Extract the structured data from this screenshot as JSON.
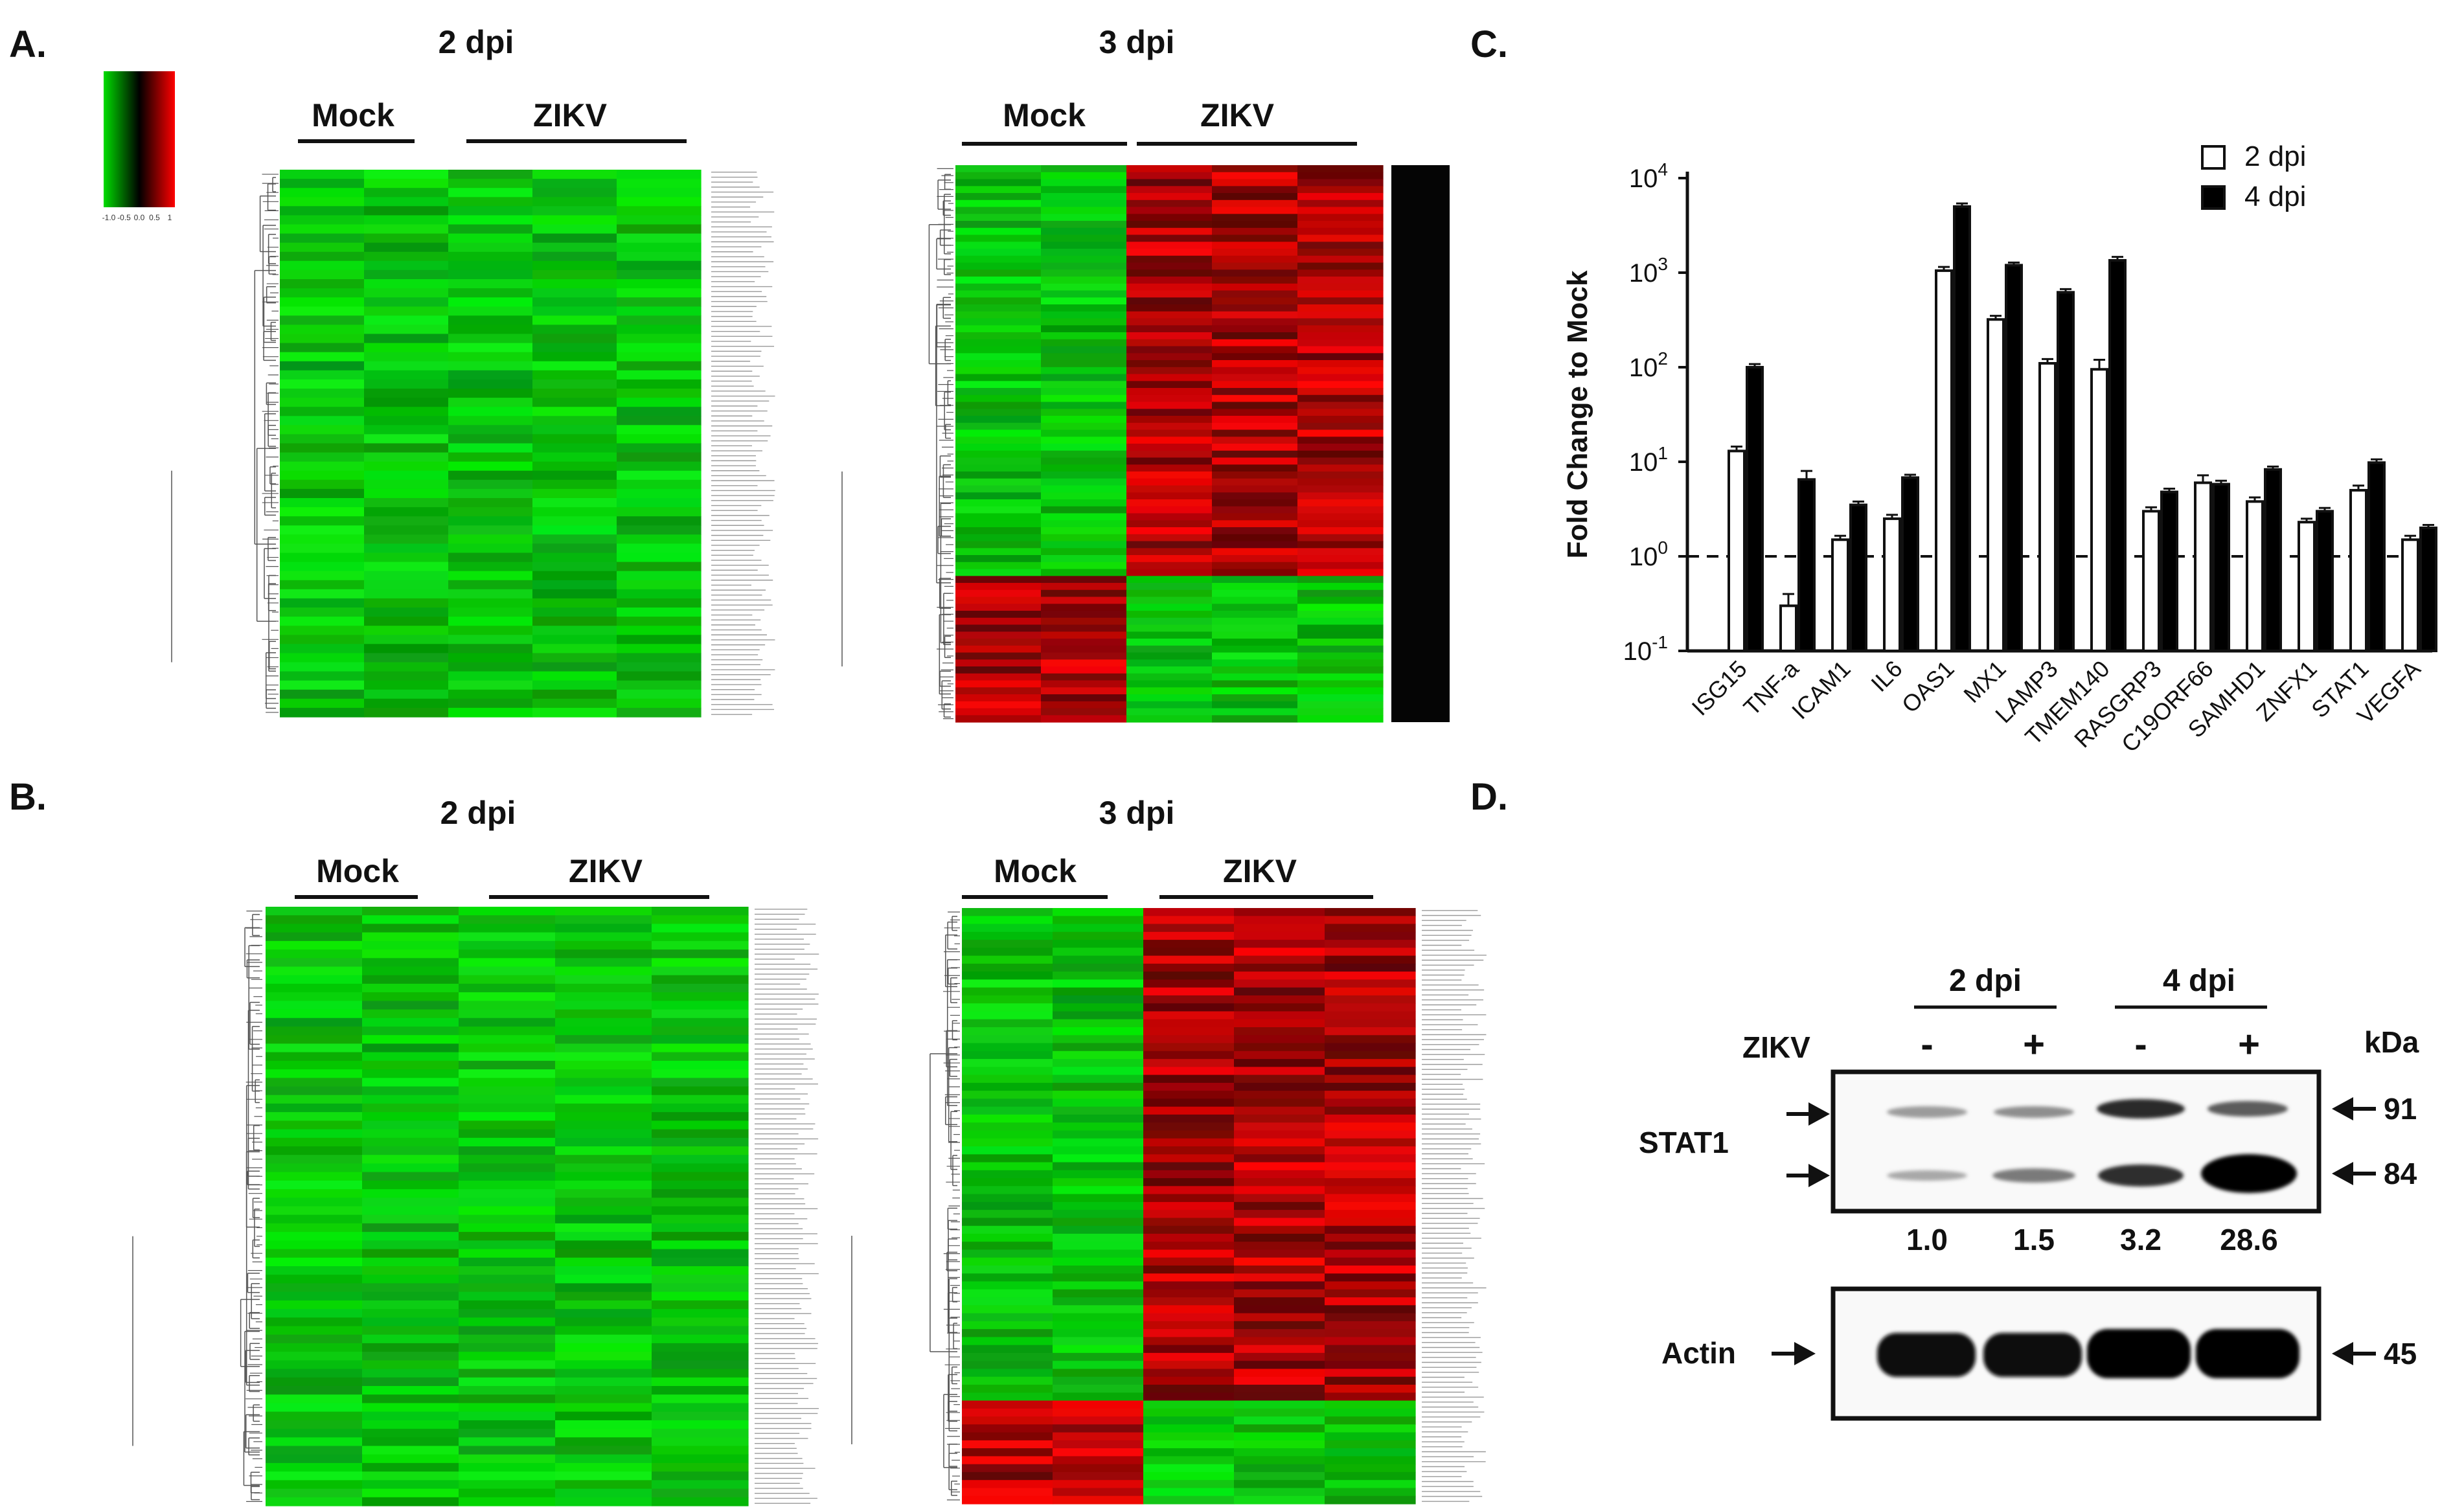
{
  "panels": {
    "A": {
      "label": "A.",
      "left": {
        "title": "2 dpi",
        "mock": "Mock",
        "zikv": "ZIKV"
      },
      "right": {
        "title": "3 dpi",
        "mock": "Mock",
        "zikv": "ZIKV"
      },
      "colorscale": {
        "ticks": [
          "-1.0",
          "-0.5",
          "0.0",
          "0.5",
          "1"
        ],
        "low_color": "#00dd00",
        "mid_color": "#000000",
        "high_color": "#ff0000"
      }
    },
    "B": {
      "label": "B.",
      "left": {
        "title": "2 dpi",
        "mock": "Mock",
        "zikv": "ZIKV"
      },
      "right": {
        "title": "3 dpi",
        "mock": "Mock",
        "zikv": "ZIKV"
      }
    },
    "C": {
      "label": "C."
    },
    "D": {
      "label": "D.",
      "groups": [
        "2 dpi",
        "4 dpi"
      ],
      "zikv_label": "ZIKV",
      "lane_signs": [
        "-",
        "+",
        "-",
        "+"
      ],
      "kda_label": "kDa",
      "stat1_label": "STAT1",
      "actin_label": "Actin",
      "quant": [
        "1.0",
        "1.5",
        "3.2",
        "28.6"
      ],
      "markers": [
        "91",
        "84",
        "45"
      ]
    }
  },
  "chart_data": {
    "type": "bar",
    "title": "",
    "xlabel": "",
    "ylabel": "Fold Change to Mock",
    "yscale": "log",
    "ylim": [
      0.1,
      10000
    ],
    "y_tick_labels": [
      {
        "base": "10",
        "exp": "-1"
      },
      {
        "base": "10",
        "exp": "0"
      },
      {
        "base": "10",
        "exp": "1"
      },
      {
        "base": "10",
        "exp": "2"
      },
      {
        "base": "10",
        "exp": "3"
      },
      {
        "base": "10",
        "exp": "4"
      }
    ],
    "reference_line": 1,
    "categories": [
      "ISG15",
      "TNF-a",
      "ICAM1",
      "IL6",
      "OAS1",
      "MX1",
      "LAMP3",
      "TMEM140",
      "RASGRP3",
      "C19ORF66",
      "SAMHD1",
      "ZNFX1",
      "STAT1",
      "VEGFA"
    ],
    "series": [
      {
        "name": "2 dpi",
        "fill": "#ffffff",
        "values": [
          13,
          0.3,
          1.5,
          2.5,
          1050,
          320,
          110,
          95,
          3.0,
          6.0,
          3.8,
          2.3,
          5.0,
          1.5
        ],
        "errors": [
          1.5,
          0.1,
          0.15,
          0.25,
          100,
          30,
          12,
          25,
          0.3,
          1.2,
          0.4,
          0.2,
          0.6,
          0.15
        ]
      },
      {
        "name": "4 dpi",
        "fill": "#000000",
        "values": [
          100,
          6.5,
          3.5,
          6.8,
          5000,
          1200,
          620,
          1350,
          4.8,
          5.8,
          8.3,
          3.0,
          9.8,
          2.0
        ],
        "errors": [
          8,
          1.5,
          0.3,
          0.5,
          400,
          80,
          50,
          120,
          0.4,
          0.5,
          0.6,
          0.25,
          0.8,
          0.15
        ]
      }
    ],
    "legend": {
      "position": "top-right",
      "entries": [
        "2 dpi",
        "4 dpi"
      ]
    }
  }
}
